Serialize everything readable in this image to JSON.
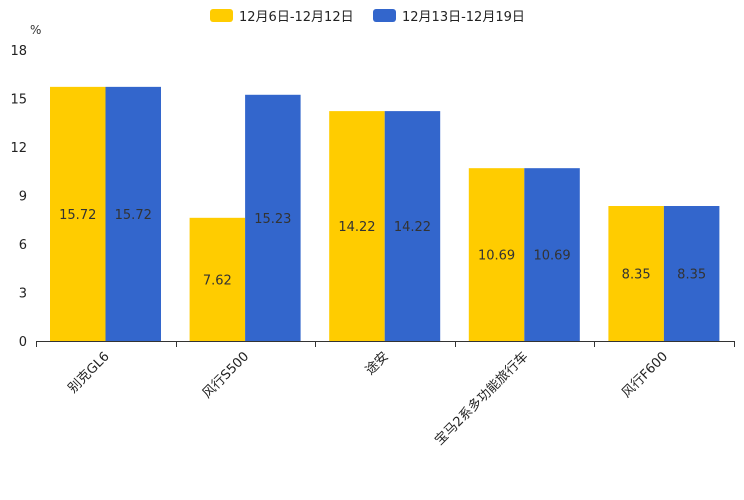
{
  "chart_data": {
    "type": "bar",
    "title": "",
    "xlabel": "",
    "ylabel": "%",
    "ylim": [
      0,
      18
    ],
    "yticks": [
      0,
      3,
      6,
      9,
      12,
      15,
      18
    ],
    "categories": [
      "别克GL6",
      "风行S500",
      "途安",
      "宝马2系多功能旅行车",
      "风行F600"
    ],
    "series": [
      {
        "name": "12月6日-12月12日",
        "color": "#ffcc00",
        "values": [
          15.72,
          7.62,
          14.22,
          10.69,
          8.35
        ]
      },
      {
        "name": "12月13日-12月19日",
        "color": "#3366cc",
        "values": [
          15.72,
          15.23,
          14.22,
          10.69,
          8.35
        ]
      }
    ],
    "legend_position": "top-center",
    "grid": false,
    "data_labels": true
  }
}
